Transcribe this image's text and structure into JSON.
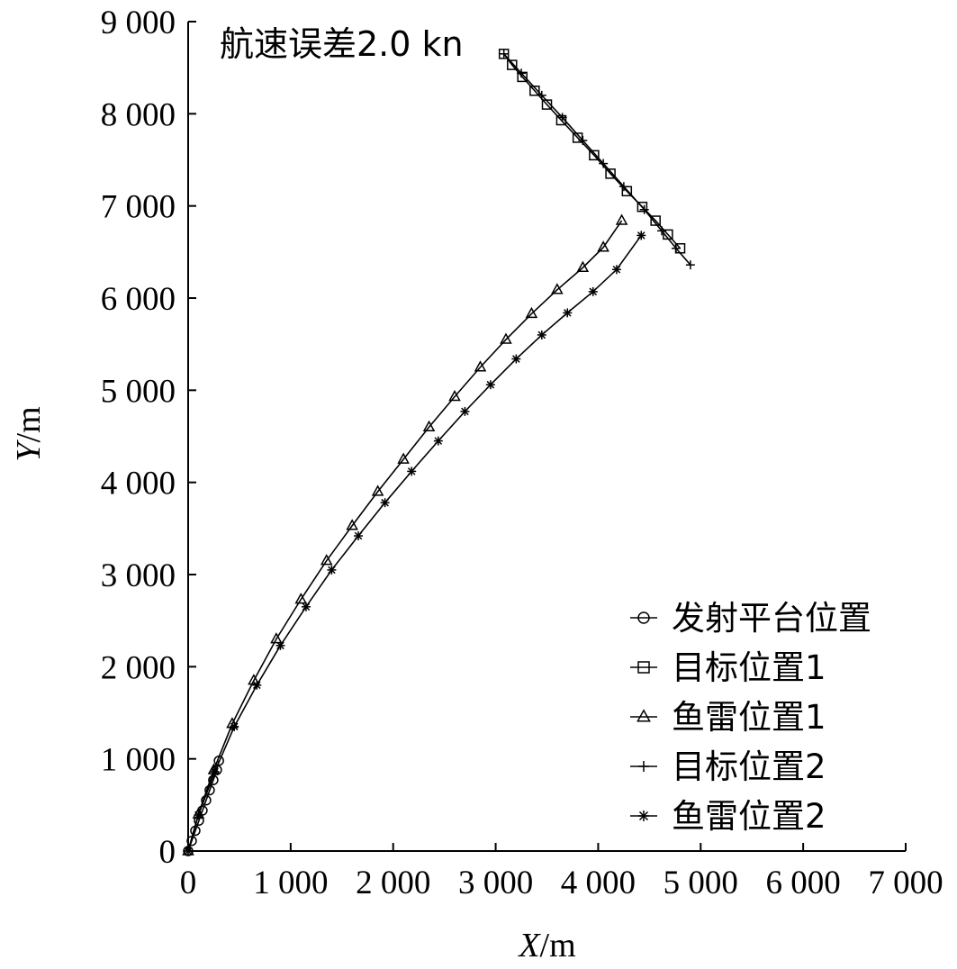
{
  "chart_data": {
    "type": "line",
    "title": "",
    "xlabel_italic": "X",
    "xlabel_unit": "/m",
    "ylabel_italic": "Y",
    "ylabel_unit": "/m",
    "xlim": [
      0,
      7000
    ],
    "ylim": [
      0,
      9000
    ],
    "xticks": [
      0,
      1000,
      2000,
      3000,
      4000,
      5000,
      6000,
      7000
    ],
    "xtick_labels": [
      "0",
      "1 000",
      "2 000",
      "3 000",
      "4 000",
      "5 000",
      "6 000",
      "7 000"
    ],
    "yticks": [
      0,
      1000,
      2000,
      3000,
      4000,
      5000,
      6000,
      7000,
      8000,
      9000
    ],
    "ytick_labels": [
      "0",
      "1 000",
      "2 000",
      "3 000",
      "4 000",
      "5 000",
      "6 000",
      "7 000",
      "8 000",
      "9 000"
    ],
    "grid": false,
    "legend_position": "bottom-right",
    "annotation": "航速误差2.0 kn",
    "color": "#000000",
    "series": [
      {
        "name": "发射平台位置",
        "marker": "circle",
        "x": [
          0,
          35,
          70,
          105,
          140,
          175,
          210,
          245,
          280,
          300
        ],
        "y": [
          0,
          110,
          220,
          330,
          440,
          550,
          660,
          770,
          880,
          980
        ]
      },
      {
        "name": "目标位置1",
        "marker": "square",
        "x": [
          3080,
          3160,
          3260,
          3380,
          3500,
          3640,
          3800,
          3960,
          4120,
          4280,
          4430,
          4560,
          4680,
          4800
        ],
        "y": [
          8650,
          8530,
          8400,
          8250,
          8100,
          7930,
          7740,
          7550,
          7350,
          7160,
          6990,
          6840,
          6690,
          6540
        ]
      },
      {
        "name": "鱼雷位置1",
        "marker": "triangle",
        "x": [
          0,
          100,
          250,
          430,
          640,
          860,
          1100,
          1350,
          1600,
          1850,
          2100,
          2350,
          2600,
          2850,
          3100,
          3350,
          3600,
          3850,
          4050,
          4230
        ],
        "y": [
          0,
          400,
          880,
          1380,
          1850,
          2300,
          2730,
          3150,
          3530,
          3900,
          4250,
          4600,
          4930,
          5250,
          5550,
          5830,
          6090,
          6330,
          6550,
          6840
        ]
      },
      {
        "name": "目标位置2",
        "marker": "plus",
        "x": [
          3080,
          3250,
          3450,
          3650,
          3850,
          4050,
          4250,
          4450,
          4620,
          4760,
          4900
        ],
        "y": [
          8650,
          8440,
          8200,
          7960,
          7710,
          7460,
          7210,
          6960,
          6730,
          6540,
          6360
        ]
      },
      {
        "name": "鱼雷位置2",
        "marker": "asterisk",
        "x": [
          0,
          100,
          260,
          450,
          670,
          900,
          1150,
          1400,
          1660,
          1920,
          2180,
          2440,
          2700,
          2950,
          3200,
          3450,
          3700,
          3950,
          4180,
          4420
        ],
        "y": [
          0,
          390,
          860,
          1350,
          1800,
          2230,
          2650,
          3050,
          3420,
          3780,
          4120,
          4450,
          4770,
          5060,
          5340,
          5600,
          5840,
          6070,
          6310,
          6680
        ]
      }
    ]
  }
}
